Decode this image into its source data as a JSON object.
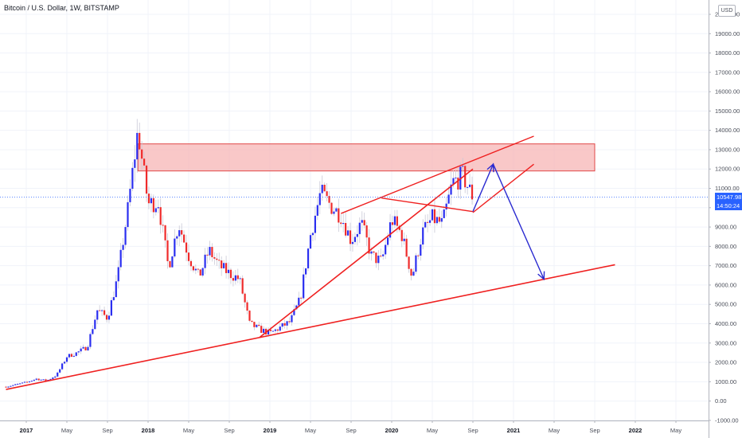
{
  "header": {
    "title": "Bitcoin / U.S. Dollar, 1W, BITSTAMP",
    "currency_button": "USD"
  },
  "price_labels": {
    "last_price": "10547.98",
    "countdown": "14:50:24",
    "color": "#2962ff"
  },
  "colors": {
    "up": "#2a2ef0",
    "down": "#ef2b2b",
    "trendline": "#ef2020",
    "zone_fill": "#f7b6b6",
    "zone_border": "#e04848",
    "projection": "#2a2ad0"
  },
  "chart_data": {
    "type": "candlestick",
    "title": "Bitcoin / U.S. Dollar, 1W, BITSTAMP",
    "y_ticks": [
      "-1000.00",
      "0.00",
      "1000.00",
      "2000.00",
      "3000.00",
      "4000.00",
      "5000.00",
      "6000.00",
      "7000.00",
      "8000.00",
      "9000.00",
      "10000.00",
      "11000.00",
      "12000.00",
      "13000.00",
      "14000.00",
      "15000.00",
      "16000.00",
      "17000.00",
      "18000.00",
      "19000.00",
      "20000.00"
    ],
    "ylim": [
      -1000,
      20000
    ],
    "x_ticks": [
      {
        "label": "2017",
        "date": "2017-01",
        "year": true
      },
      {
        "label": "May",
        "date": "2017-05"
      },
      {
        "label": "Sep",
        "date": "2017-09"
      },
      {
        "label": "2018",
        "date": "2018-01",
        "year": true
      },
      {
        "label": "May",
        "date": "2018-05"
      },
      {
        "label": "Sep",
        "date": "2018-09"
      },
      {
        "label": "2019",
        "date": "2019-01",
        "year": true
      },
      {
        "label": "May",
        "date": "2019-05"
      },
      {
        "label": "Sep",
        "date": "2019-09"
      },
      {
        "label": "2020",
        "date": "2020-01",
        "year": true
      },
      {
        "label": "May",
        "date": "2020-05"
      },
      {
        "label": "Sep",
        "date": "2020-09"
      },
      {
        "label": "2021",
        "date": "2021-01",
        "year": true
      },
      {
        "label": "May",
        "date": "2021-05"
      },
      {
        "label": "Sep",
        "date": "2021-09"
      },
      {
        "label": "2022",
        "date": "2022-01",
        "year": true
      },
      {
        "label": "May",
        "date": "2022-05"
      }
    ],
    "price_path": [
      [
        "2016-11",
        740
      ],
      [
        "2017-01",
        970
      ],
      [
        "2017-02",
        1150
      ],
      [
        "2017-03",
        1050
      ],
      [
        "2017-04",
        1350
      ],
      [
        "2017-05",
        2300
      ],
      [
        "2017-06",
        2500
      ],
      [
        "2017-07",
        2800
      ],
      [
        "2017-08",
        4700
      ],
      [
        "2017-09",
        4300
      ],
      [
        "2017-10",
        6400
      ],
      [
        "2017-11",
        9900
      ],
      [
        "2017-12",
        14000
      ],
      [
        "2018-01",
        10200
      ],
      [
        "2018-02",
        10300
      ],
      [
        "2018-03",
        6900
      ],
      [
        "2018-04",
        9200
      ],
      [
        "2018-05",
        7500
      ],
      [
        "2018-06",
        6400
      ],
      [
        "2018-07",
        7800
      ],
      [
        "2018-08",
        7000
      ],
      [
        "2018-09",
        6600
      ],
      [
        "2018-10",
        6300
      ],
      [
        "2018-11",
        4000
      ],
      [
        "2018-12",
        3700
      ],
      [
        "2019-01",
        3500
      ],
      [
        "2019-02",
        3800
      ],
      [
        "2019-03",
        4100
      ],
      [
        "2019-04",
        5300
      ],
      [
        "2019-05",
        8600
      ],
      [
        "2019-06",
        10800
      ],
      [
        "2019-07",
        10100
      ],
      [
        "2019-08",
        9600
      ],
      [
        "2019-09",
        8300
      ],
      [
        "2019-10",
        9200
      ],
      [
        "2019-11",
        7500
      ],
      [
        "2019-12",
        7200
      ],
      [
        "2020-01",
        9400
      ],
      [
        "2020-02",
        8600
      ],
      [
        "2020-03",
        6400
      ],
      [
        "2020-04",
        8700
      ],
      [
        "2020-05",
        9450
      ],
      [
        "2020-06",
        9150
      ],
      [
        "2020-07",
        11300
      ],
      [
        "2020-08",
        11650
      ],
      [
        "2020-09",
        10550
      ]
    ],
    "last_price": 10547.98,
    "annotations": {
      "resistance_zone": {
        "from": "2017-12",
        "to": "2021-09",
        "low": 11900,
        "high": 13300
      },
      "support_trendline": [
        [
          "2016-11",
          600
        ],
        [
          "2021-11",
          7050
        ]
      ],
      "rising_trendline": [
        [
          "2018-12",
          3300
        ],
        [
          "2020-09",
          12000
        ]
      ],
      "wedge_upper_line": [
        [
          "2019-08",
          9700
        ],
        [
          "2021-03",
          13700
        ]
      ],
      "wedge_lower_line": [
        [
          "2020-09",
          9750
        ],
        [
          "2021-03",
          12250
        ]
      ],
      "wedge_mid_line": [
        [
          "2019-12",
          10500
        ],
        [
          "2020-09",
          9800
        ]
      ],
      "projection_path": [
        [
          "2020-09",
          9800
        ],
        [
          "2020-11",
          12250
        ],
        [
          "2021-04",
          6300
        ]
      ]
    }
  }
}
